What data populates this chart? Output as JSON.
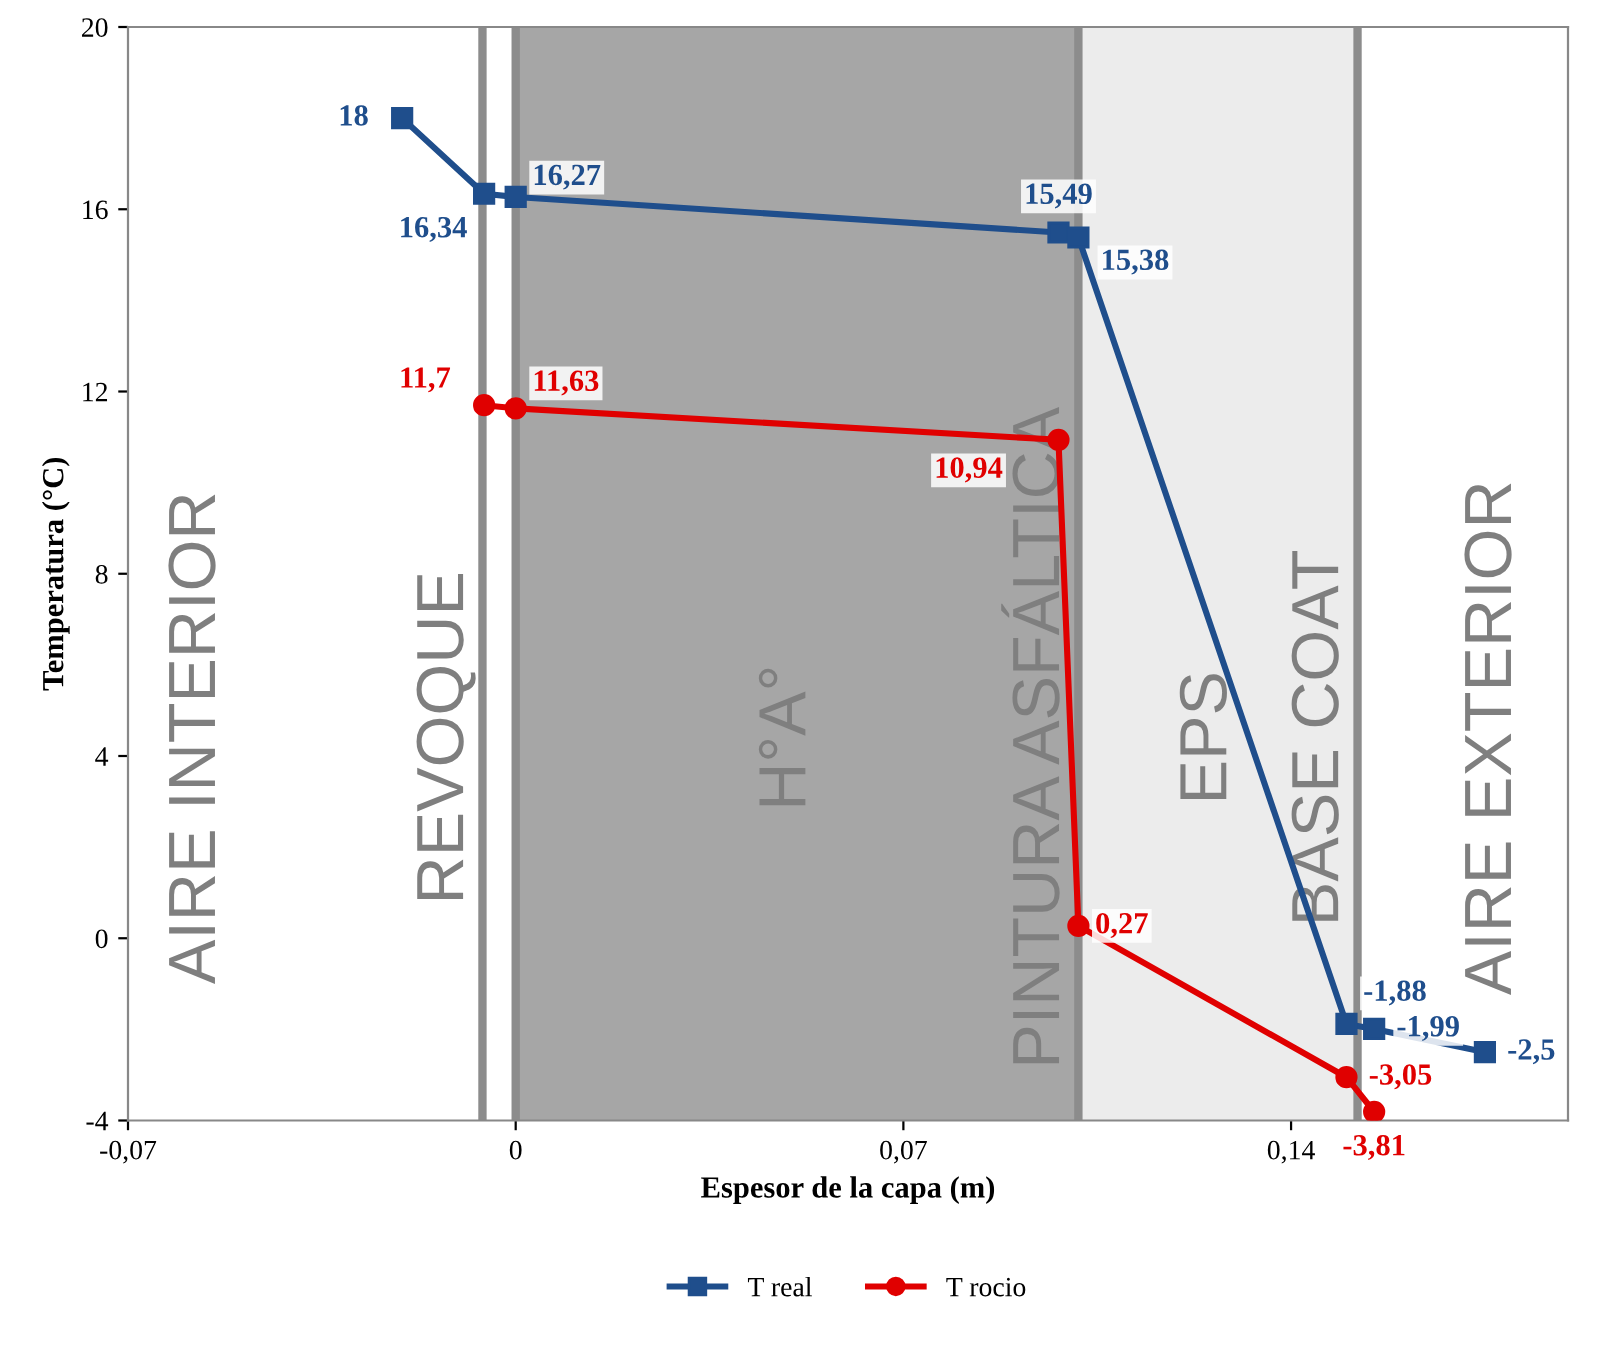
{
  "chart_data": {
    "type": "line",
    "xlabel": "Espesor de la capa (m)",
    "ylabel": "Temperatura (°C)",
    "xlim": [
      -0.07,
      0.19
    ],
    "xticks": [
      {
        "value": -0.07,
        "label": "-0,07"
      },
      0,
      {
        "value": 0.07,
        "label": "0,07"
      },
      {
        "value": 0.14,
        "label": "0,14"
      }
    ],
    "ylim": [
      -4,
      20
    ],
    "yticks": [
      -4,
      0,
      4,
      8,
      12,
      16,
      20
    ],
    "grid": false,
    "legend": "bottom",
    "line_style": "solid",
    "series": [
      {
        "name": "T real",
        "color": "#1f4e8c",
        "marker": "square",
        "x": [
          -0.0205,
          -0.0057,
          0,
          0.098,
          0.1016,
          0.15,
          0.155,
          0.175
        ],
        "values": [
          18,
          16.34,
          16.27,
          15.49,
          15.38,
          -1.88,
          -1.99,
          -2.5
        ],
        "value_labels": [
          "18",
          "16,34",
          "16,27",
          "15,49",
          "15,38",
          "-1,88",
          "-1,99",
          "-2,5"
        ]
      },
      {
        "name": "T rocio",
        "color": "#e00000",
        "marker": "circle",
        "x": [
          -0.0057,
          0,
          0.098,
          0.1016,
          0.15,
          0.155
        ],
        "values": [
          11.7,
          11.63,
          10.94,
          0.27,
          -3.05,
          -3.81
        ],
        "value_labels": [
          "11,7",
          "11,63",
          "10,94",
          "0,27",
          "-3,05",
          "-3,81"
        ]
      }
    ],
    "bands": [
      {
        "axis": "x",
        "from": 0,
        "to": 0.1016,
        "label": "H°A°",
        "color": "#a6a6a6"
      },
      {
        "axis": "x",
        "from": 0.1016,
        "to": 0.152,
        "label": "EPS",
        "color": "#ececec"
      }
    ],
    "ref_lines": [
      {
        "axis": "x",
        "value": -0.006,
        "label": "REVOQUE",
        "color": "#8c8c8c"
      },
      {
        "axis": "x",
        "value": 0,
        "label": null,
        "color": "#8c8c8c"
      },
      {
        "axis": "x",
        "value": 0.1016,
        "label": "PINTURA ASFÁLTICA",
        "color": "#8c8c8c"
      },
      {
        "axis": "x",
        "value": 0.152,
        "label": "BASE COAT",
        "color": "#8c8c8c"
      }
    ],
    "annotations": [
      "AIRE INTERIOR",
      "AIRE EXTERIOR"
    ]
  }
}
